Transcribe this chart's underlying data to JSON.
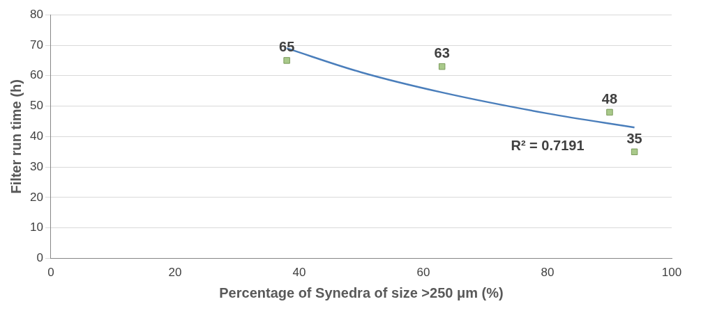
{
  "chart_data": {
    "type": "scatter",
    "xlabel": "Percentage of Synedra of size >250 μm (%)",
    "ylabel": "Filter run time (h)",
    "series": [
      {
        "color": "#a9c98a",
        "marker": "square",
        "x": [
          38,
          63,
          90,
          94
        ],
        "values": [
          65,
          63,
          48,
          35
        ],
        "value_labels": [
          "65",
          "63",
          "48",
          "35"
        ]
      },
      {
        "type": "line",
        "color": "#4a7ebb",
        "marker": "none",
        "x": [
          38,
          50,
          63,
          80,
          94
        ],
        "values": [
          69,
          61.1,
          54.5,
          47.6,
          43
        ]
      }
    ],
    "xlim": [
      0,
      100
    ],
    "xticks": [
      0,
      20,
      40,
      60,
      80,
      100
    ],
    "ylim": [
      0,
      80
    ],
    "yticks": [
      0,
      10,
      20,
      30,
      40,
      50,
      60,
      70,
      80
    ],
    "grid": "y",
    "legend": false,
    "annotations": [
      "R² = 0.7191"
    ]
  }
}
